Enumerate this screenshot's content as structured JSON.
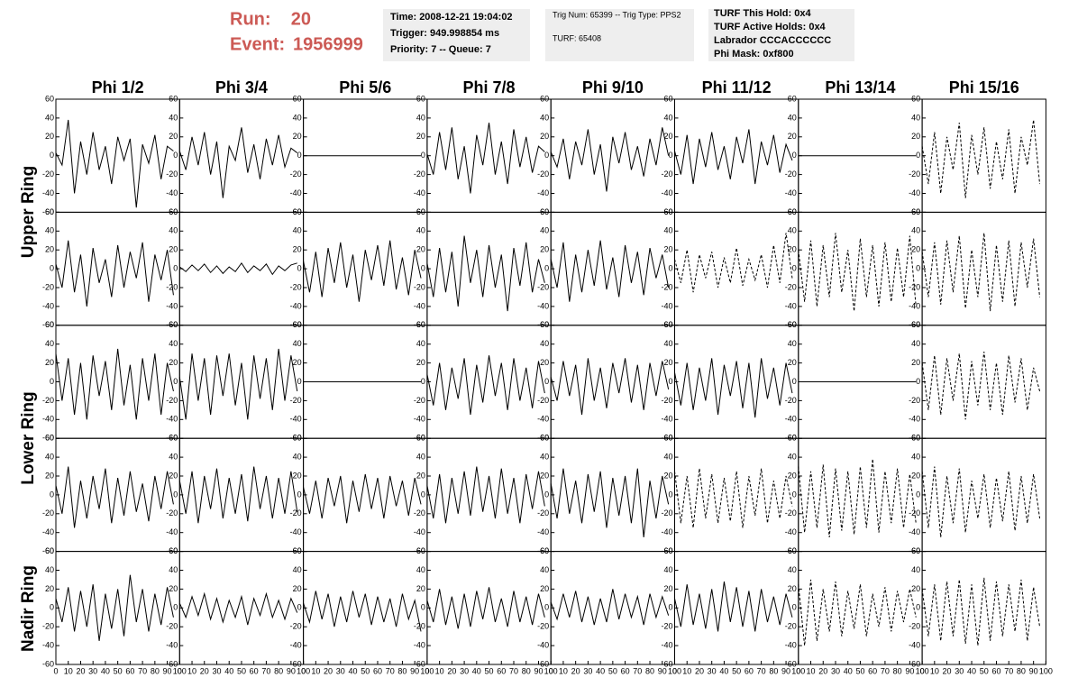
{
  "header": {
    "run_label": "Run:",
    "run": 20,
    "event_label": "Event:",
    "event": 1956999,
    "box1": [
      "Time: 2008-12-21 19:04:02",
      "Trigger: 949.998854 ms",
      "Priority: 7 -- Queue: 7"
    ],
    "box2": [
      "Trig Num: 65399 -- Trig Type: PPS2",
      "TURF: 65408"
    ],
    "box3": [
      "TURF This Hold: 0x4",
      "TURF Active Holds: 0x4",
      "Labrador CCCACCCCCC",
      "Phi Mask: 0xf800"
    ],
    "highlight_color": "#e020e0"
  },
  "grid": {
    "columns": [
      "Phi 1/2",
      "Phi 3/4",
      "Phi 5/6",
      "Phi 7/8",
      "Phi 9/10",
      "Phi 11/12",
      "Phi 13/14",
      "Phi 15/16"
    ],
    "row_labels": [
      "Upper Ring",
      "Lower Ring",
      "Nadir Ring"
    ],
    "ylim": [
      -60,
      60
    ],
    "yticks": [
      60,
      40,
      20,
      0,
      -20,
      -40,
      -60
    ],
    "xlim": [
      0,
      100
    ],
    "xticks": [
      0,
      10,
      20,
      30,
      40,
      50,
      60,
      70,
      80,
      90,
      100
    ],
    "x": [
      0,
      5,
      10,
      15,
      20,
      25,
      30,
      35,
      40,
      45,
      50,
      55,
      60,
      65,
      70,
      75,
      80,
      85,
      90,
      95
    ],
    "panels": [
      [
        {
          "style": "solid",
          "values": [
            3,
            -10,
            38,
            -40,
            15,
            -20,
            25,
            -15,
            10,
            -30,
            20,
            -5,
            18,
            -55,
            12,
            -8,
            22,
            -25,
            10,
            5
          ]
        },
        {
          "style": "solid",
          "values": [
            5,
            -15,
            20,
            -10,
            25,
            -20,
            15,
            -45,
            10,
            -5,
            30,
            -18,
            12,
            -25,
            18,
            -10,
            22,
            -12,
            8,
            3
          ]
        },
        {
          "style": "solid",
          "values": [
            0,
            0,
            0,
            0,
            0,
            0,
            0,
            0,
            0,
            0,
            0,
            0,
            0,
            0,
            0,
            0,
            0,
            0,
            0,
            0
          ]
        },
        {
          "style": "solid",
          "values": [
            2,
            -20,
            25,
            -15,
            30,
            -25,
            10,
            -40,
            22,
            -10,
            35,
            -20,
            15,
            -30,
            28,
            -12,
            20,
            -18,
            10,
            4
          ]
        },
        {
          "style": "solid",
          "values": [
            4,
            -12,
            18,
            -25,
            15,
            -10,
            28,
            -20,
            12,
            -38,
            20,
            -8,
            25,
            -15,
            10,
            -22,
            18,
            -10,
            30,
            0
          ]
        },
        {
          "style": "solid",
          "values": [
            5,
            -20,
            22,
            -30,
            18,
            -12,
            25,
            -15,
            10,
            -25,
            20,
            -8,
            28,
            -30,
            15,
            -10,
            22,
            -18,
            12,
            -5
          ]
        },
        {
          "style": "solid",
          "values": [
            0,
            0,
            0,
            0,
            0,
            0,
            0,
            0,
            0,
            0,
            0,
            0,
            0,
            0,
            0,
            0,
            0,
            0,
            0,
            0
          ]
        },
        {
          "style": "dashed",
          "values": [
            10,
            -30,
            25,
            -40,
            20,
            -15,
            35,
            -45,
            22,
            -20,
            30,
            -35,
            15,
            -25,
            28,
            -40,
            20,
            -10,
            38,
            -30
          ]
        }
      ],
      [
        {
          "style": "solid",
          "values": [
            5,
            -20,
            30,
            -25,
            15,
            -40,
            22,
            -15,
            10,
            -30,
            25,
            -20,
            18,
            -10,
            28,
            -35,
            15,
            -12,
            20,
            -28
          ]
        },
        {
          "style": "solid",
          "values": [
            2,
            -3,
            4,
            -2,
            5,
            -4,
            3,
            -5,
            2,
            -3,
            6,
            -4,
            3,
            -2,
            5,
            -6,
            3,
            -2,
            4,
            6
          ]
        },
        {
          "style": "solid",
          "values": [
            8,
            -25,
            18,
            -30,
            22,
            -15,
            28,
            -20,
            15,
            -35,
            20,
            -12,
            25,
            -18,
            30,
            -22,
            12,
            -28,
            20,
            -10
          ]
        },
        {
          "style": "solid",
          "values": [
            6,
            -30,
            22,
            -25,
            18,
            -40,
            35,
            -15,
            20,
            -30,
            25,
            -20,
            15,
            -45,
            22,
            -18,
            28,
            -25,
            10,
            -15
          ]
        },
        {
          "style": "solid",
          "values": [
            10,
            -20,
            28,
            -35,
            15,
            -25,
            20,
            -18,
            30,
            -22,
            12,
            -30,
            25,
            -15,
            18,
            -28,
            22,
            -10,
            15,
            -20
          ]
        },
        {
          "style": "dashed",
          "values": [
            10,
            -15,
            20,
            -25,
            15,
            -10,
            18,
            -20,
            12,
            -15,
            22,
            -18,
            10,
            -12,
            15,
            -20,
            25,
            -15,
            38,
            -10
          ]
        },
        {
          "style": "dashed",
          "values": [
            20,
            -35,
            30,
            -40,
            25,
            -30,
            38,
            -25,
            20,
            -45,
            32,
            -30,
            25,
            -40,
            28,
            -35,
            22,
            -30,
            35,
            -40
          ]
        },
        {
          "style": "dashed",
          "values": [
            18,
            -30,
            28,
            -38,
            30,
            -25,
            35,
            -42,
            20,
            -30,
            38,
            -45,
            25,
            -35,
            30,
            -40,
            28,
            -20,
            32,
            -30
          ]
        }
      ],
      [
        {
          "style": "solid",
          "values": [
            30,
            -20,
            25,
            -35,
            20,
            -40,
            28,
            -15,
            22,
            -30,
            35,
            -25,
            18,
            -40,
            25,
            -20,
            30,
            -35,
            20,
            -10
          ]
        },
        {
          "style": "solid",
          "values": [
            5,
            -40,
            30,
            -20,
            25,
            -35,
            28,
            -15,
            30,
            -25,
            20,
            -40,
            28,
            -18,
            25,
            -30,
            35,
            -20,
            28,
            -10
          ]
        },
        {
          "style": "solid",
          "values": [
            0,
            0,
            0,
            0,
            0,
            0,
            0,
            0,
            0,
            0,
            0,
            0,
            0,
            0,
            0,
            0,
            0,
            0,
            0,
            0
          ]
        },
        {
          "style": "solid",
          "values": [
            8,
            -25,
            20,
            -30,
            15,
            -18,
            25,
            -35,
            18,
            -22,
            28,
            -15,
            20,
            -30,
            25,
            -20,
            15,
            -28,
            22,
            -12
          ]
        },
        {
          "style": "solid",
          "values": [
            5,
            -20,
            22,
            -15,
            18,
            -35,
            25,
            -20,
            15,
            -28,
            20,
            -12,
            25,
            -22,
            18,
            -30,
            20,
            -15,
            22,
            -8
          ]
        },
        {
          "style": "solid",
          "values": [
            10,
            -25,
            20,
            -30,
            15,
            -20,
            25,
            -35,
            18,
            -15,
            22,
            -28,
            20,
            -38,
            25,
            -18,
            15,
            -25,
            20,
            -12
          ]
        },
        {
          "style": "solid",
          "values": [
            0,
            0,
            0,
            0,
            0,
            0,
            0,
            0,
            0,
            0,
            0,
            0,
            0,
            0,
            0,
            0,
            0,
            0,
            0,
            0
          ]
        },
        {
          "style": "dashed",
          "values": [
            20,
            -30,
            28,
            -35,
            25,
            -20,
            30,
            -40,
            22,
            -25,
            32,
            -30,
            20,
            -35,
            28,
            -22,
            25,
            -30,
            15,
            -10
          ]
        }
      ],
      [
        {
          "style": "solid",
          "values": [
            10,
            -20,
            30,
            -35,
            15,
            -25,
            20,
            -15,
            28,
            -30,
            18,
            -22,
            25,
            -18,
            12,
            -28,
            20,
            -15,
            25,
            -10
          ]
        },
        {
          "style": "solid",
          "values": [
            15,
            -20,
            25,
            -30,
            20,
            -15,
            28,
            -25,
            18,
            -20,
            22,
            -28,
            30,
            -15,
            20,
            -25,
            18,
            -20,
            25,
            -18
          ]
        },
        {
          "style": "solid",
          "values": [
            8,
            -20,
            15,
            -25,
            18,
            -12,
            20,
            -30,
            15,
            -18,
            22,
            -15,
            18,
            -25,
            20,
            -12,
            15,
            -22,
            18,
            -10
          ]
        },
        {
          "style": "solid",
          "values": [
            10,
            -25,
            22,
            -30,
            18,
            -20,
            25,
            -22,
            30,
            -18,
            20,
            -25,
            28,
            -20,
            18,
            -30,
            22,
            -15,
            25,
            -12
          ]
        },
        {
          "style": "solid",
          "values": [
            12,
            -25,
            28,
            -20,
            15,
            -30,
            22,
            -18,
            25,
            -35,
            18,
            -22,
            20,
            -30,
            28,
            -45,
            15,
            -25,
            20,
            -10
          ]
        },
        {
          "style": "dashed",
          "values": [
            25,
            -30,
            20,
            -35,
            28,
            -25,
            22,
            -30,
            18,
            -28,
            25,
            -35,
            20,
            -22,
            28,
            -30,
            15,
            -25,
            20,
            -12
          ]
        },
        {
          "style": "dashed",
          "values": [
            30,
            -40,
            25,
            -35,
            32,
            -45,
            28,
            -38,
            25,
            -42,
            30,
            -35,
            38,
            -40,
            25,
            -30,
            28,
            -35,
            22,
            -30
          ]
        },
        {
          "style": "dashed",
          "values": [
            25,
            -35,
            30,
            -45,
            20,
            -30,
            28,
            -40,
            15,
            -25,
            22,
            -35,
            18,
            -28,
            25,
            -38,
            20,
            -30,
            22,
            -25
          ]
        }
      ],
      [
        {
          "style": "solid",
          "values": [
            10,
            -15,
            22,
            -25,
            18,
            -20,
            25,
            -35,
            15,
            -22,
            20,
            -30,
            35,
            -15,
            20,
            -25,
            15,
            -18,
            22,
            -10
          ]
        },
        {
          "style": "solid",
          "values": [
            5,
            -10,
            12,
            -8,
            15,
            -12,
            10,
            -15,
            8,
            -10,
            12,
            -18,
            10,
            -8,
            15,
            -10,
            8,
            -12,
            10,
            -5
          ]
        },
        {
          "style": "solid",
          "values": [
            5,
            -15,
            18,
            -12,
            15,
            -20,
            12,
            -15,
            18,
            -10,
            15,
            -18,
            12,
            -15,
            10,
            -20,
            15,
            -12,
            8,
            -25
          ]
        },
        {
          "style": "solid",
          "values": [
            8,
            -15,
            20,
            -18,
            12,
            -22,
            15,
            -20,
            18,
            -12,
            22,
            -15,
            10,
            -20,
            18,
            -15,
            12,
            -18,
            15,
            -10
          ]
        },
        {
          "style": "solid",
          "values": [
            6,
            -12,
            15,
            -10,
            18,
            -15,
            12,
            -18,
            10,
            -15,
            20,
            -12,
            15,
            -10,
            12,
            -18,
            15,
            -10,
            12,
            -8
          ]
        },
        {
          "style": "solid",
          "values": [
            10,
            -20,
            25,
            -18,
            15,
            -22,
            20,
            -25,
            28,
            -15,
            22,
            -20,
            18,
            -25,
            20,
            -15,
            12,
            -18,
            15,
            -10
          ]
        },
        {
          "style": "dashed",
          "values": [
            25,
            -40,
            30,
            -35,
            20,
            -25,
            28,
            -30,
            18,
            -22,
            25,
            -30,
            15,
            -20,
            22,
            -25,
            18,
            -15,
            20,
            -10
          ]
        },
        {
          "style": "dashed",
          "values": [
            20,
            -30,
            25,
            -35,
            28,
            -30,
            30,
            -38,
            25,
            -40,
            32,
            -35,
            28,
            -30,
            25,
            -25,
            30,
            -35,
            22,
            -20
          ]
        }
      ]
    ]
  }
}
